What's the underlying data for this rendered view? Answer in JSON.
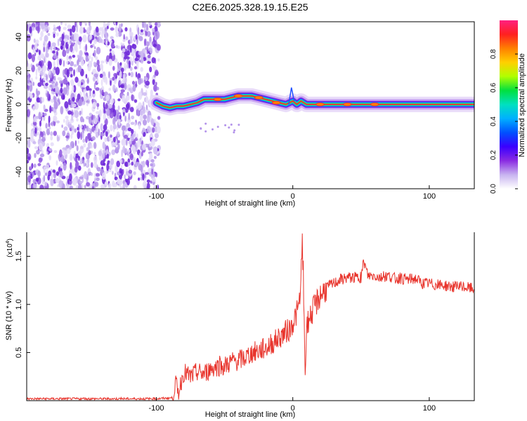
{
  "page_title": "C2E6.2025.328.19.15.E25",
  "colors": {
    "snr_line": "#e8342c",
    "axis": "#000000",
    "ridge_core": "#ff1f3a"
  },
  "colormap": [
    "#ffffff",
    "#c8b4f0",
    "#8a2be2",
    "#3a00ff",
    "#0050ff",
    "#00b0ff",
    "#00e0c0",
    "#00e040",
    "#b0ff00",
    "#ffd000",
    "#ff8000",
    "#ff2020",
    "#ff2080"
  ],
  "chart_data": [
    {
      "id": "spectrogram",
      "type": "heatmap",
      "title": "C2E6.2025.328.19.15.E25",
      "xlabel": "Height of straight line (km)",
      "ylabel": "Frequency (Hz)",
      "xlim": [
        -195,
        133
      ],
      "ylim": [
        -50,
        49
      ],
      "xticks": [
        -100,
        0,
        100
      ],
      "xtick_labels": [
        "-100",
        "0",
        "100"
      ],
      "yticks": [
        -40,
        -20,
        0,
        20,
        40
      ],
      "ytick_labels": [
        "-40",
        "-20",
        "0",
        "20",
        "40"
      ],
      "noise_region_km": [
        -195,
        -98
      ],
      "ridge": {
        "x": [
          -100,
          -95,
          -90,
          -85,
          -80,
          -75,
          -70,
          -65,
          -60,
          -55,
          -50,
          -45,
          -40,
          -35,
          -30,
          -25,
          -20,
          -15,
          -10,
          -5,
          0,
          3,
          6,
          10,
          15,
          20,
          40,
          60,
          80,
          100,
          133
        ],
        "y": [
          1,
          -1,
          -2,
          -1,
          -1,
          0,
          1,
          3,
          3,
          3,
          3,
          4,
          5,
          5,
          5,
          4,
          3,
          2,
          1,
          0,
          2,
          0,
          2,
          0,
          0,
          0,
          0,
          0,
          0,
          0,
          0
        ]
      },
      "colorbar": {
        "label": "Normalized spectral amplitude",
        "range": [
          0,
          1
        ],
        "ticks": [
          0.0,
          0.2,
          0.4,
          0.6,
          0.8
        ],
        "tick_labels": [
          "0.0",
          "0.2",
          "0.4",
          "0.6",
          "0.8"
        ]
      }
    },
    {
      "id": "snr",
      "type": "line",
      "xlabel": "Height of straight line (km)",
      "ylabel": "SNR (10 * v/v)",
      "scale_label": "(x10",
      "scale_exp": "4",
      "scale_close": ")",
      "xlim": [
        -195,
        133
      ],
      "ylim": [
        0,
        1.75
      ],
      "xticks": [
        -100,
        0,
        100
      ],
      "xtick_labels": [
        "-100",
        "0",
        "100"
      ],
      "yticks": [
        0.5,
        1.0,
        1.5
      ],
      "ytick_labels": [
        "0.5",
        "1.0",
        "1.5"
      ],
      "series": [
        {
          "name": "SNR",
          "x": [
            -195,
            -150,
            -100,
            -88,
            -86,
            -84,
            -80,
            -75,
            -70,
            -65,
            -60,
            -55,
            -50,
            -45,
            -40,
            -35,
            -30,
            -25,
            -20,
            -15,
            -10,
            -5,
            -2,
            0,
            2,
            4,
            5,
            6,
            7,
            8,
            8.5,
            9,
            9.5,
            10,
            12,
            15,
            20,
            25,
            30,
            35,
            40,
            45,
            50,
            52,
            55,
            60,
            65,
            70,
            75,
            80,
            85,
            90,
            95,
            100,
            105,
            110,
            115,
            120,
            125,
            130,
            133
          ],
          "y": [
            0.02,
            0.02,
            0.02,
            0.03,
            0.2,
            0.08,
            0.3,
            0.25,
            0.3,
            0.28,
            0.34,
            0.36,
            0.36,
            0.41,
            0.42,
            0.45,
            0.5,
            0.52,
            0.55,
            0.6,
            0.66,
            0.72,
            0.75,
            0.82,
            0.88,
            0.95,
            1.05,
            1.2,
            1.75,
            1.1,
            0.5,
            0.3,
            0.45,
            0.75,
            0.85,
            0.95,
            1.1,
            1.18,
            1.22,
            1.26,
            1.28,
            1.28,
            1.28,
            1.45,
            1.3,
            1.3,
            1.28,
            1.3,
            1.27,
            1.27,
            1.26,
            1.27,
            1.22,
            1.22,
            1.2,
            1.2,
            1.19,
            1.18,
            1.18,
            1.17,
            1.16
          ]
        }
      ]
    }
  ]
}
